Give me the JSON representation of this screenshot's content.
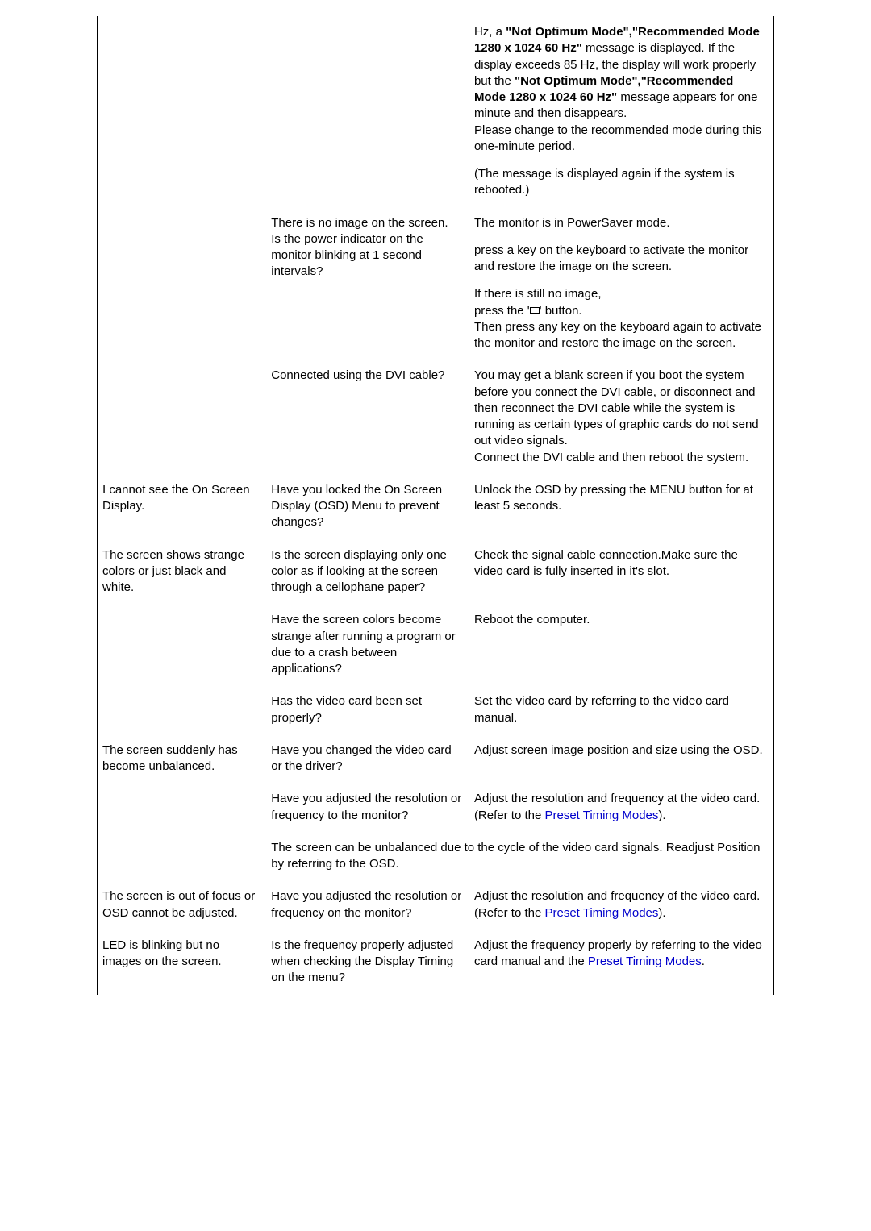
{
  "rows": [
    {
      "c1": "",
      "c2": "",
      "c3_parts": [
        {
          "html": "Hz, a <span class=\"bold\">\"Not Optimum Mode\",\"Recommended Mode 1280 x 1024 60 Hz\"</span> message is displayed. If the display exceeds 85 Hz, the display will work properly but the <span class=\"bold\">\"Not Optimum Mode\",\"Recommended Mode 1280 x 1024 60 Hz\"</span> message appears for one minute and then disappears.<br>Please change to the recommended mode during this one-minute period."
        },
        {
          "html": "(The message is displayed again if the system is rebooted.)"
        }
      ]
    },
    {
      "c1": "",
      "c2": "There is no image on the screen.\nIs the power indicator on the monitor blinking at 1 second intervals?",
      "c3_parts": [
        {
          "html": "The monitor is in PowerSaver mode."
        },
        {
          "html": "press a key on the keyboard to activate the monitor and restore the image on the screen."
        },
        {
          "html": "If there is still no image,<br>press the '<span class=\"icon-rect\"></span>' button.<br>Then press any key on the keyboard again to activate the monitor and restore the image on the screen."
        }
      ]
    },
    {
      "c1": "",
      "c2": "Connected using the DVI cable?",
      "c3_parts": [
        {
          "html": "You may get a blank screen if you boot the system before you connect the DVI cable, or disconnect and then reconnect the DVI cable while the system is running as certain types of graphic cards do not send out video signals.<br>Connect the DVI cable and then reboot the system."
        }
      ]
    },
    {
      "c1": "I cannot see the On Screen Display.",
      "c2": "Have you locked the On Screen Display (OSD) Menu to prevent changes?",
      "c3_parts": [
        {
          "html": "Unlock the OSD by pressing the MENU button for at least 5 seconds."
        }
      ]
    },
    {
      "c1": "The screen shows strange colors or just black and white.",
      "c2": "Is the screen displaying only one color as if looking at the screen through a cellophane paper?",
      "c3_parts": [
        {
          "html": "Check the signal cable connection.Make sure the video card is fully inserted in it's slot."
        }
      ]
    },
    {
      "c1": "",
      "c2": "Have the screen colors become strange after running a program or due to a crash between applications?",
      "c3_parts": [
        {
          "html": "Reboot the computer."
        }
      ]
    },
    {
      "c1": "",
      "c2": "Has the video card been set properly?",
      "c3_parts": [
        {
          "html": "Set the video card by referring to the video card manual."
        }
      ]
    },
    {
      "c1": "The screen suddenly has become unbalanced.",
      "c2": "Have you changed the video card or the driver?",
      "c3_parts": [
        {
          "html": "Adjust screen image position and size using the OSD."
        }
      ]
    },
    {
      "c1": "",
      "c2": "Have you adjusted the resolution or frequency to the monitor?",
      "c3_parts": [
        {
          "html": "Adjust the resolution and frequency at the video card.<br>(Refer to the <a class=\"link\" data-name=\"preset-timing-link\" data-interactable=\"true\">Preset Timing Modes</a>)."
        }
      ]
    },
    {
      "span": true,
      "c_full": "The screen can be unbalanced due to the cycle of the video card signals. Readjust Position by referring to the OSD."
    },
    {
      "c1": "The screen is out of focus or OSD cannot be adjusted.",
      "c2": "Have you adjusted the resolution or frequency on the monitor?",
      "c3_parts": [
        {
          "html": "Adjust the resolution and frequency of the video card.<br>(Refer to the <a class=\"link\" data-name=\"preset-timing-link\" data-interactable=\"true\">Preset Timing Modes</a>)."
        }
      ]
    },
    {
      "c1": "LED is blinking but no images on the screen.",
      "c2": "Is the frequency properly adjusted when checking the Display Timing on the menu?",
      "c3_parts": [
        {
          "html": "Adjust the frequency properly by referring to the video card manual and the <a class=\"link\" data-name=\"preset-timing-link\" data-interactable=\"true\">Preset Timing Modes</a>."
        }
      ]
    }
  ]
}
